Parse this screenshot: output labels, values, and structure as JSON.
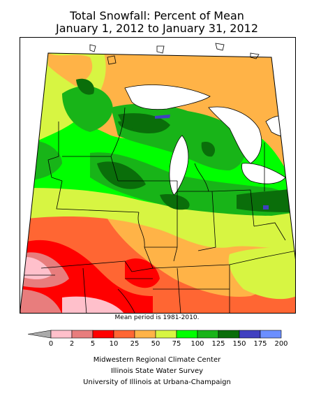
{
  "title": {
    "line1": "Total Snowfall: Percent of Mean",
    "line2": "January 1, 2012 to January 31, 2012"
  },
  "note": "Mean period is 1981-2010.",
  "legend": {
    "ticks": [
      "0",
      "2",
      "5",
      "10",
      "25",
      "50",
      "75",
      "100",
      "125",
      "150",
      "175",
      "200"
    ],
    "colors": [
      "#ffc0cb",
      "#e87d7d",
      "#ff0000",
      "#ff6633",
      "#ffb347",
      "#d7f542",
      "#00ff00",
      "#18b418",
      "#0a6e0a",
      "#4040c0",
      "#6b8fff"
    ],
    "below_color": "#aaaaaa"
  },
  "credits": {
    "line1": "Midwestern Regional Climate Center",
    "line2": "Illinois State Water Survey",
    "line3": "University of Illinois at Urbana-Champaign"
  }
}
